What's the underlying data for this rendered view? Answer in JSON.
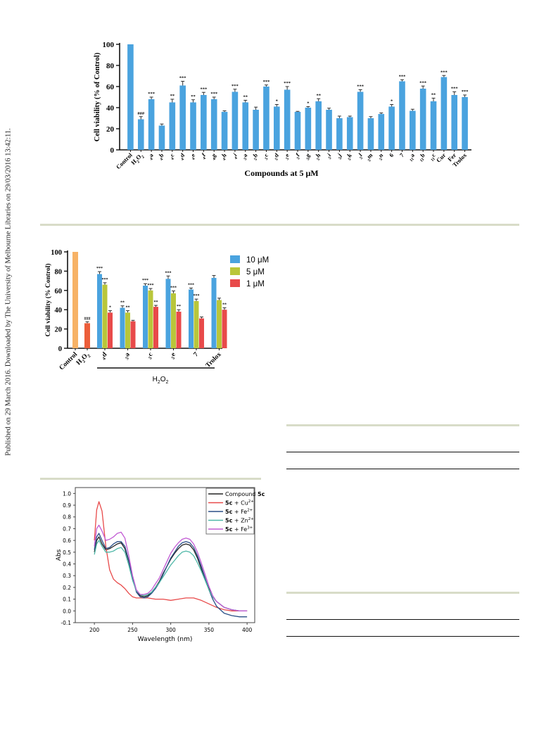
{
  "side_note": "Published on 29 March 2016. Downloaded by The University of Melbourne Libraries on 29/03/2016 13:42:11.",
  "colors": {
    "bar_blue": "#4aa3df",
    "bar_orange": "#f7b266",
    "bar_red_dark": "#ec5e3a",
    "series_10": "#4aa3df",
    "series_5": "#b9c63a",
    "series_1": "#e84a4a",
    "rule": "#d8dcc8"
  },
  "chart_data": [
    {
      "type": "bar",
      "ylabel": "Cell viability (% of Control)",
      "xlabel": "Compounds at 5 μM",
      "ylim": [
        0,
        100
      ],
      "yticks": [
        "0",
        "20",
        "40",
        "60",
        "80",
        "100"
      ],
      "categories": [
        "Control",
        "H2O2",
        "4a",
        "4b",
        "4c",
        "4d",
        "4e",
        "4f",
        "4g",
        "4h",
        "4i",
        "5a",
        "5b",
        "5c",
        "5d",
        "5e",
        "5f",
        "5g",
        "5h",
        "5i",
        "5j",
        "5k",
        "5l",
        "5m",
        "5n",
        "6",
        "7",
        "11a",
        "11b",
        "11c",
        "Cur",
        "Fer",
        "Trolox"
      ],
      "values": [
        100,
        29,
        48,
        23,
        45,
        61,
        45,
        52,
        48,
        36,
        55,
        45,
        38,
        60,
        41,
        57,
        36,
        40,
        46,
        38,
        30,
        31,
        55,
        30,
        34,
        41,
        65,
        37,
        58,
        46,
        69,
        52,
        50
      ],
      "errors": [
        0,
        2.5,
        2,
        1.5,
        3,
        4,
        2.5,
        2.5,
        2,
        1,
        2.5,
        2,
        2.5,
        1.5,
        2,
        3,
        0.5,
        1,
        2.5,
        1.5,
        2,
        1,
        2,
        1.5,
        1,
        2,
        1.5,
        1.5,
        2.5,
        3,
        1.5,
        3,
        2
      ],
      "significance": [
        "",
        "###",
        "***",
        "",
        "**",
        "***",
        "**",
        "***",
        "***",
        "",
        "***",
        "**",
        "",
        "***",
        "*",
        "***",
        "",
        "*",
        "**",
        "",
        "",
        "",
        "***",
        "",
        "",
        "*",
        "***",
        "",
        "***",
        "**",
        "***",
        "***",
        "***"
      ]
    },
    {
      "type": "bar",
      "ylabel": "Cell viability (% Control)",
      "ylim": [
        0,
        100
      ],
      "yticks": [
        "0",
        "20",
        "40",
        "60",
        "80",
        "100"
      ],
      "group_label": "+ H2O2",
      "controls": [
        {
          "category": "Control",
          "value": 100,
          "error": 0,
          "significance": ""
        },
        {
          "category": "H2O2",
          "value": 26,
          "error": 1.5,
          "significance": "###"
        }
      ],
      "categories": [
        "4d",
        "5a",
        "5c",
        "5e",
        "7",
        "Trolox"
      ],
      "series": [
        {
          "name": "10 μM",
          "values": [
            77,
            42,
            65,
            72,
            61,
            73
          ],
          "errors": [
            2.5,
            2,
            2,
            3,
            1.5,
            2.5
          ],
          "significance": [
            "***",
            "**",
            "***",
            "***",
            "***",
            ""
          ]
        },
        {
          "name": "5 μM",
          "values": [
            66,
            37,
            60,
            57,
            49,
            50
          ],
          "errors": [
            2,
            2,
            2,
            2.5,
            2,
            2
          ],
          "significance": [
            "***",
            "**",
            "***",
            "***",
            "***",
            ""
          ]
        },
        {
          "name": "1 μM",
          "values": [
            37,
            28,
            43,
            38,
            31,
            40
          ],
          "errors": [
            2,
            1,
            1.5,
            2,
            1.5,
            2
          ],
          "significance": [
            "*",
            "",
            "**",
            "**",
            "",
            "**"
          ]
        }
      ]
    },
    {
      "type": "line",
      "xlabel": "Wavelength (nm)",
      "ylabel": "Abs",
      "xlim": [
        175,
        410
      ],
      "ylim": [
        -0.1,
        1.05
      ],
      "xticks": [
        "200",
        "250",
        "300",
        "350",
        "400"
      ],
      "yticks": [
        "-0.1",
        "0.0",
        "0.1",
        "0.2",
        "0.3",
        "0.4",
        "0.5",
        "0.6",
        "0.7",
        "0.8",
        "0.9",
        "1.0"
      ],
      "series": [
        {
          "name": "Compound 5c",
          "label_plain": "Compound ",
          "label_bold": "5c",
          "label_sup": "",
          "color": "#222222",
          "x": [
            200,
            203,
            206,
            210,
            215,
            220,
            225,
            230,
            235,
            240,
            245,
            250,
            255,
            260,
            265,
            270,
            275,
            280,
            285,
            290,
            295,
            300,
            305,
            310,
            315,
            320,
            325,
            330,
            335,
            340,
            345,
            350,
            355,
            360,
            370,
            380,
            390,
            400
          ],
          "y": [
            0.5,
            0.6,
            0.63,
            0.57,
            0.52,
            0.53,
            0.55,
            0.57,
            0.58,
            0.53,
            0.42,
            0.28,
            0.17,
            0.13,
            0.12,
            0.13,
            0.16,
            0.2,
            0.25,
            0.32,
            0.38,
            0.44,
            0.49,
            0.53,
            0.56,
            0.57,
            0.56,
            0.52,
            0.45,
            0.36,
            0.27,
            0.19,
            0.12,
            0.08,
            0.03,
            0.01,
            0.0,
            0.0
          ]
        },
        {
          "name": "5c + Cu2+",
          "label_plain": " + Cu",
          "label_bold": "5c",
          "label_sup": "2+",
          "color": "#e84a4a",
          "x": [
            200,
            203,
            206,
            210,
            215,
            220,
            225,
            230,
            235,
            240,
            245,
            250,
            255,
            260,
            265,
            270,
            280,
            290,
            300,
            310,
            320,
            330,
            340,
            350,
            360,
            370,
            380,
            390,
            400
          ],
          "y": [
            0.6,
            0.86,
            0.93,
            0.85,
            0.55,
            0.35,
            0.27,
            0.24,
            0.22,
            0.19,
            0.15,
            0.12,
            0.11,
            0.11,
            0.11,
            0.11,
            0.1,
            0.1,
            0.09,
            0.1,
            0.11,
            0.11,
            0.09,
            0.06,
            0.03,
            0.01,
            0.0,
            0.0,
            0.0
          ]
        },
        {
          "name": "5c + Fe2+",
          "label_plain": " + Fe",
          "label_bold": "5c",
          "label_sup": "2+",
          "color": "#2a4f86",
          "x": [
            200,
            203,
            206,
            210,
            215,
            220,
            225,
            230,
            235,
            240,
            245,
            250,
            255,
            260,
            265,
            270,
            275,
            280,
            285,
            290,
            295,
            300,
            305,
            310,
            315,
            320,
            325,
            330,
            335,
            340,
            345,
            350,
            355,
            360,
            370,
            380,
            390,
            400
          ],
          "y": [
            0.52,
            0.63,
            0.66,
            0.6,
            0.53,
            0.54,
            0.57,
            0.59,
            0.59,
            0.55,
            0.43,
            0.28,
            0.16,
            0.12,
            0.11,
            0.12,
            0.15,
            0.19,
            0.24,
            0.31,
            0.38,
            0.45,
            0.5,
            0.55,
            0.58,
            0.59,
            0.58,
            0.54,
            0.47,
            0.38,
            0.28,
            0.18,
            0.1,
            0.04,
            -0.02,
            -0.04,
            -0.05,
            -0.05
          ]
        },
        {
          "name": "5c + Zn2+",
          "label_plain": " + Zn",
          "label_bold": "5c",
          "label_sup": "2+",
          "color": "#4fb8a8",
          "x": [
            200,
            203,
            206,
            210,
            215,
            220,
            225,
            230,
            235,
            240,
            245,
            250,
            255,
            260,
            265,
            270,
            275,
            280,
            285,
            290,
            295,
            300,
            305,
            310,
            315,
            320,
            325,
            330,
            335,
            340,
            345,
            350,
            355,
            360,
            370,
            380,
            390,
            400
          ],
          "y": [
            0.48,
            0.57,
            0.6,
            0.55,
            0.5,
            0.5,
            0.51,
            0.53,
            0.54,
            0.5,
            0.39,
            0.26,
            0.17,
            0.14,
            0.13,
            0.14,
            0.16,
            0.2,
            0.24,
            0.29,
            0.34,
            0.39,
            0.43,
            0.47,
            0.5,
            0.51,
            0.5,
            0.47,
            0.41,
            0.34,
            0.26,
            0.18,
            0.12,
            0.08,
            0.03,
            0.01,
            0.0,
            0.0
          ]
        },
        {
          "name": "5c + Fe3+",
          "label_plain": " + Fe",
          "label_bold": "5c",
          "label_sup": "3+",
          "color": "#c25bd4",
          "x": [
            200,
            203,
            206,
            210,
            215,
            220,
            225,
            230,
            235,
            240,
            245,
            250,
            255,
            260,
            265,
            270,
            275,
            280,
            285,
            290,
            295,
            300,
            305,
            310,
            315,
            320,
            325,
            330,
            335,
            340,
            345,
            350,
            355,
            360,
            370,
            380,
            390,
            400
          ],
          "y": [
            0.55,
            0.7,
            0.73,
            0.68,
            0.6,
            0.61,
            0.63,
            0.66,
            0.67,
            0.62,
            0.47,
            0.3,
            0.18,
            0.14,
            0.14,
            0.15,
            0.18,
            0.23,
            0.28,
            0.35,
            0.42,
            0.49,
            0.54,
            0.58,
            0.61,
            0.62,
            0.61,
            0.57,
            0.5,
            0.41,
            0.31,
            0.21,
            0.13,
            0.08,
            0.03,
            0.01,
            0.0,
            0.0
          ]
        }
      ]
    }
  ]
}
